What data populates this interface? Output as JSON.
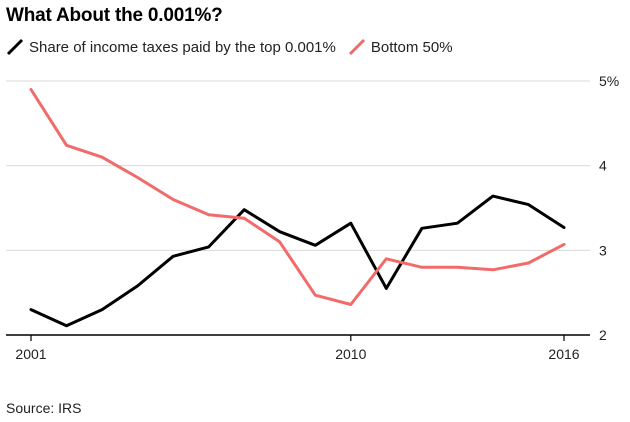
{
  "chart_data": {
    "type": "line",
    "title": "What About the 0.001%?",
    "x": [
      2001,
      2002,
      2003,
      2004,
      2005,
      2006,
      2007,
      2008,
      2009,
      2010,
      2011,
      2012,
      2013,
      2014,
      2015,
      2016
    ],
    "series": [
      {
        "name": "Share of income taxes paid by the top 0.001%",
        "color": "#000000",
        "values": [
          2.3,
          2.11,
          2.3,
          2.58,
          2.93,
          3.04,
          3.48,
          3.22,
          3.06,
          3.32,
          2.55,
          3.26,
          3.32,
          3.64,
          3.54,
          3.27
        ]
      },
      {
        "name": "Bottom 50%",
        "color": "#f26b6b",
        "values": [
          4.9,
          4.24,
          4.1,
          3.86,
          3.6,
          3.42,
          3.38,
          3.1,
          2.47,
          2.36,
          2.9,
          2.8,
          2.8,
          2.77,
          2.85,
          3.07
        ]
      }
    ],
    "xlim": [
      2001,
      2016
    ],
    "ylim": [
      2,
      5
    ],
    "x_ticks": [
      "2001",
      "2010",
      "2016"
    ],
    "y_ticks": [
      "2",
      "3",
      "4",
      "5%"
    ],
    "y_tick_values": [
      2,
      3,
      4,
      5
    ],
    "x_tick_values": [
      2001,
      2010,
      2016
    ],
    "y_axis_side": "right",
    "grid": "horizontal",
    "legend_placement": "top-left"
  },
  "legend": {
    "items": [
      {
        "label": "Share of income taxes paid by the top 0.001%",
        "color": "#000000"
      },
      {
        "label": "Bottom 50%",
        "color": "#f26b6b"
      }
    ]
  },
  "source": "Source: IRS"
}
